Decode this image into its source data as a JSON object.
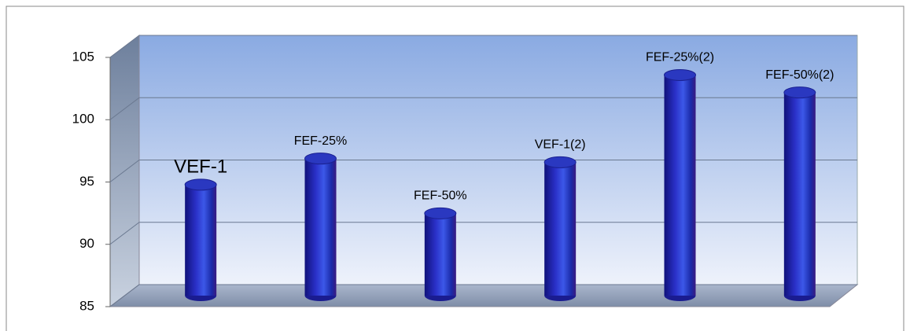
{
  "chart_data": {
    "type": "bar",
    "categories": [
      "VEF-1",
      "FEF-25%",
      "FEF-50%",
      "VEF-1(2)",
      "FEF-25%(2)",
      "FEF-50%(2)"
    ],
    "values": [
      93.9,
      96,
      91.6,
      95.7,
      102.7,
      101.3
    ],
    "color": "#1c20a8",
    "ylim": [
      85,
      105
    ],
    "yticks": [
      85,
      90,
      95,
      100,
      105
    ],
    "grid": true
  }
}
